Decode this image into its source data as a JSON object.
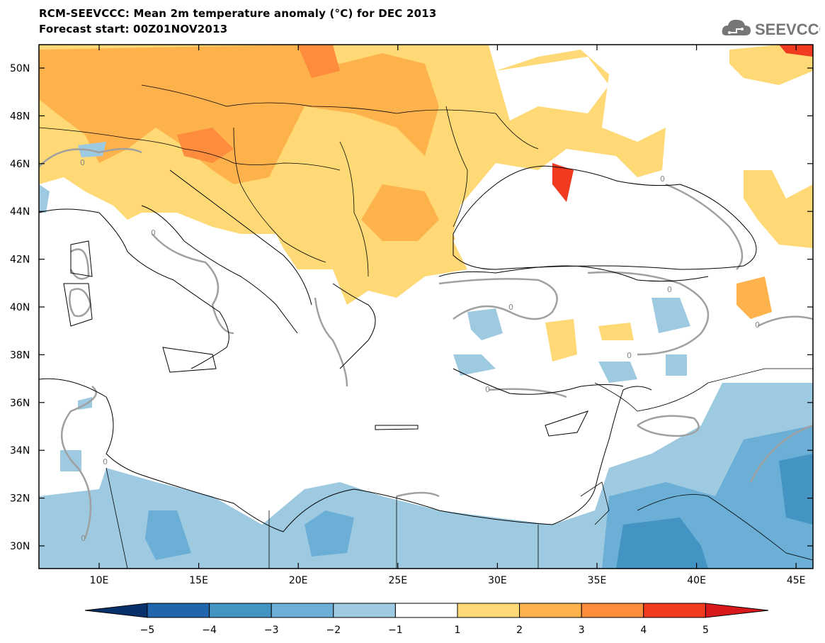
{
  "header": {
    "title_line1": "RCM-SEEVCCC: Mean 2m temperature anomaly (°C) for DEC 2013",
    "title_line2": "Forecast start: 00Z01NOV2013",
    "logo_text": "SEEVCCC",
    "logo_icon": "cloud-icon"
  },
  "map": {
    "lat_labels": [
      "50N",
      "48N",
      "46N",
      "44N",
      "42N",
      "40N",
      "38N",
      "36N",
      "34N",
      "32N",
      "30N"
    ],
    "lon_labels": [
      "10E",
      "15E",
      "20E",
      "25E",
      "30E",
      "35E",
      "40E",
      "45E"
    ],
    "contour_label": "0"
  },
  "colorbar": {
    "ticks": [
      "−5",
      "−4",
      "−3",
      "−2",
      "−1",
      "1",
      "2",
      "3",
      "4",
      "5"
    ],
    "colors": [
      "#08306b",
      "#2166ac",
      "#4393c3",
      "#6baed6",
      "#9ecae1",
      "#ffffff",
      "#fed976",
      "#feb24c",
      "#fd8d3c",
      "#f03b20",
      "#d7191c"
    ]
  }
}
